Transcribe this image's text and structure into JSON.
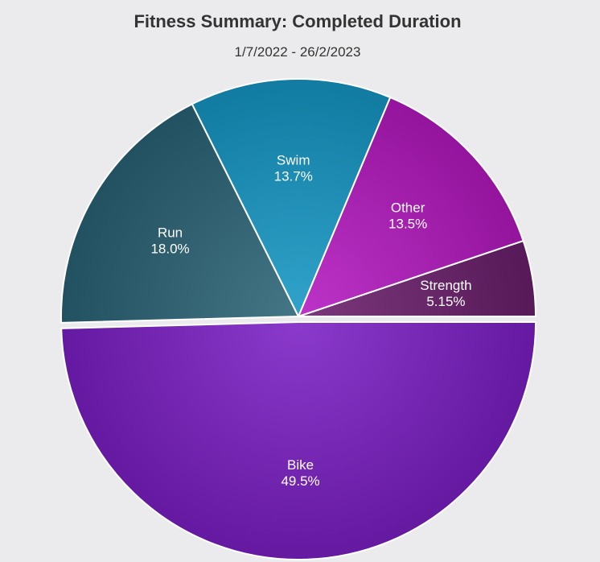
{
  "header": {
    "title": "Fitness Summary: Completed Duration",
    "subtitle": "1/7/2022 - 26/2/2023"
  },
  "chart_data": {
    "type": "pie",
    "title": "Fitness Summary: Completed Duration",
    "subtitle": "1/7/2022 - 26/2/2023",
    "start_angle_deg": 0,
    "direction": "counter-clockwise",
    "exploded_slice": "Bike",
    "slices": [
      {
        "name": "Strength",
        "value": 5.15,
        "label": "5.15%",
        "color": "#6a1e6b"
      },
      {
        "name": "Other",
        "value": 13.5,
        "label": "13.5%",
        "color": "#b418c0"
      },
      {
        "name": "Swim",
        "value": 13.7,
        "label": "13.7%",
        "color": "#1596c4"
      },
      {
        "name": "Run",
        "value": 18.0,
        "label": "18.0%",
        "color": "#2a6376"
      },
      {
        "name": "Bike",
        "value": 49.5,
        "label": "49.5%",
        "color": "#7b1fc4"
      }
    ]
  }
}
